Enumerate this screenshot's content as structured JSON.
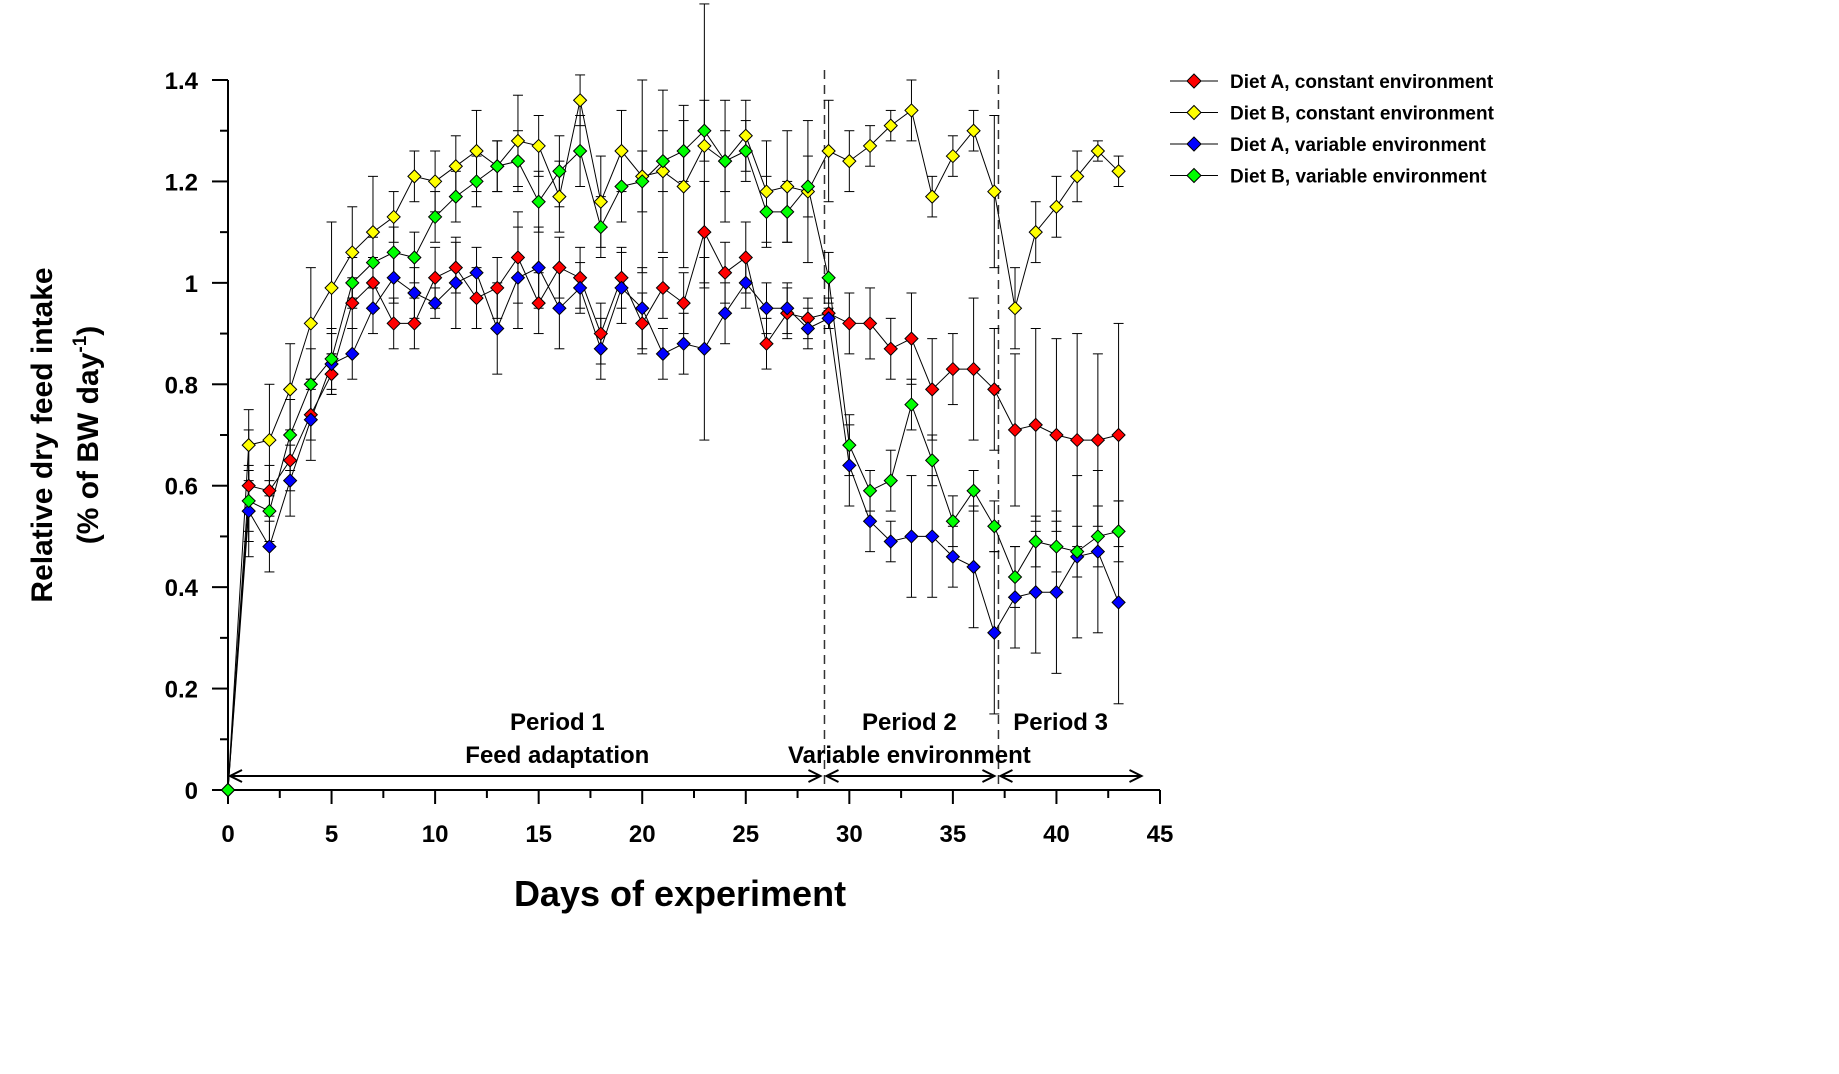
{
  "chart_data": {
    "type": "line",
    "xlabel": "Days of experiment",
    "ylabel_line1": "Relative dry feed intake",
    "ylabel_line2_prefix": "(% of BW day",
    "ylabel_line2_sup": "-1",
    "ylabel_line2_suffix": ")",
    "xlim": [
      0,
      45
    ],
    "ylim": [
      0,
      1.4
    ],
    "xticks": [
      0,
      5,
      10,
      15,
      20,
      25,
      30,
      35,
      40,
      45
    ],
    "yticks": [
      {
        "v": 0,
        "label": "0"
      },
      {
        "v": 0.2,
        "label": "0.2"
      },
      {
        "v": 0.4,
        "label": "0.4"
      },
      {
        "v": 0.6,
        "label": "0.6"
      },
      {
        "v": 0.8,
        "label": "0.8"
      },
      {
        "v": 1.0,
        "label": "1"
      },
      {
        "v": 1.2,
        "label": "1.2"
      },
      {
        "v": 1.4,
        "label": "1.4"
      }
    ],
    "grid": false,
    "legend_position": "top-right",
    "period_dividers": [
      28.8,
      37.2
    ],
    "periods": [
      {
        "line1": "Period 1",
        "line2": "Feed adaptation",
        "x_start": 0,
        "x_end": 28.8,
        "label_x": 15.9
      },
      {
        "line1": "Period 2",
        "line2": "Variable environment",
        "x_start": 28.8,
        "x_end": 37.2,
        "label_x": 32.9
      },
      {
        "line1": "Period 3",
        "line2": "",
        "x_start": 37.2,
        "x_end": 44.3,
        "label_x": 40.2
      }
    ],
    "series": [
      {
        "name": "Diet A, constant environment",
        "color": "#ff0000",
        "points": [
          [
            0,
            0,
            0
          ],
          [
            1,
            0.6,
            0.11
          ],
          [
            2,
            0.59,
            0.05
          ],
          [
            3,
            0.65,
            0.06
          ],
          [
            4,
            0.74,
            0.05
          ],
          [
            5,
            0.82,
            0.04
          ],
          [
            6,
            0.96,
            0.05
          ],
          [
            7,
            1.0,
            0.05
          ],
          [
            8,
            0.92,
            0.05
          ],
          [
            9,
            0.92,
            0.05
          ],
          [
            10,
            1.01,
            0.06
          ],
          [
            11,
            1.03,
            0.05
          ],
          [
            12,
            0.97,
            0.06
          ],
          [
            13,
            0.99,
            0.06
          ],
          [
            14,
            1.05,
            0.09
          ],
          [
            15,
            0.96,
            0.06
          ],
          [
            16,
            1.03,
            0.06
          ],
          [
            17,
            1.01,
            0.06
          ],
          [
            18,
            0.9,
            0.06
          ],
          [
            19,
            1.01,
            0.06
          ],
          [
            20,
            0.92,
            0.06
          ],
          [
            21,
            0.99,
            0.06
          ],
          [
            22,
            0.96,
            0.06
          ],
          [
            23,
            1.1,
            0.1
          ],
          [
            24,
            1.02,
            0.06
          ],
          [
            25,
            1.05,
            0.07
          ],
          [
            26,
            0.88,
            0.05
          ],
          [
            27,
            0.94,
            0.05
          ],
          [
            28,
            0.93,
            0.04
          ],
          [
            29,
            0.94,
            0.03
          ],
          [
            30,
            0.92,
            0.06
          ],
          [
            31,
            0.92,
            0.07
          ],
          [
            32,
            0.87,
            0.06
          ],
          [
            33,
            0.89,
            0.09
          ],
          [
            34,
            0.79,
            0.1
          ],
          [
            35,
            0.83,
            0.07
          ],
          [
            36,
            0.83,
            0.14
          ],
          [
            37,
            0.79,
            0.12
          ],
          [
            38,
            0.71,
            0.15
          ],
          [
            39,
            0.72,
            0.19
          ],
          [
            40,
            0.7,
            0.19
          ],
          [
            41,
            0.69,
            0.21
          ],
          [
            42,
            0.69,
            0.17
          ],
          [
            43,
            0.7,
            0.22
          ]
        ]
      },
      {
        "name": "Diet B, constant environment",
        "color": "#ffff00",
        "points": [
          [
            0,
            0,
            0
          ],
          [
            1,
            0.68,
            0.07
          ],
          [
            2,
            0.69,
            0.11
          ],
          [
            3,
            0.79,
            0.09
          ],
          [
            4,
            0.92,
            0.11
          ],
          [
            5,
            0.99,
            0.13
          ],
          [
            6,
            1.06,
            0.09
          ],
          [
            7,
            1.1,
            0.11
          ],
          [
            8,
            1.13,
            0.05
          ],
          [
            9,
            1.21,
            0.05
          ],
          [
            10,
            1.2,
            0.06
          ],
          [
            11,
            1.23,
            0.06
          ],
          [
            12,
            1.26,
            0.08
          ],
          [
            13,
            1.23,
            0.05
          ],
          [
            14,
            1.28,
            0.09
          ],
          [
            15,
            1.27,
            0.06
          ],
          [
            16,
            1.17,
            0.07
          ],
          [
            17,
            1.36,
            0.05
          ],
          [
            18,
            1.16,
            0.09
          ],
          [
            19,
            1.26,
            0.08
          ],
          [
            20,
            1.21,
            0.19
          ],
          [
            21,
            1.22,
            0.16
          ],
          [
            22,
            1.19,
            0.16
          ],
          [
            23,
            1.27,
            0.28
          ],
          [
            24,
            1.24,
            0.12
          ],
          [
            25,
            1.29,
            0.07
          ],
          [
            26,
            1.18,
            0.1
          ],
          [
            27,
            1.19,
            0.11
          ],
          [
            28,
            1.18,
            0.14
          ],
          [
            29,
            1.26,
            0.1
          ],
          [
            30,
            1.24,
            0.06
          ],
          [
            31,
            1.27,
            0.04
          ],
          [
            32,
            1.31,
            0.03
          ],
          [
            33,
            1.34,
            0.06
          ],
          [
            34,
            1.17,
            0.04
          ],
          [
            35,
            1.25,
            0.04
          ],
          [
            36,
            1.3,
            0.04
          ],
          [
            37,
            1.18,
            0.15
          ],
          [
            38,
            0.95,
            0.08
          ],
          [
            39,
            1.1,
            0.06
          ],
          [
            40,
            1.15,
            0.06
          ],
          [
            41,
            1.21,
            0.05
          ],
          [
            42,
            1.26,
            0.02
          ],
          [
            43,
            1.22,
            0.03
          ]
        ]
      },
      {
        "name": "Diet A, variable environment",
        "color": "#0000ff",
        "points": [
          [
            0,
            0,
            0
          ],
          [
            1,
            0.55,
            0.09
          ],
          [
            2,
            0.48,
            0.05
          ],
          [
            3,
            0.61,
            0.07
          ],
          [
            4,
            0.73,
            0.08
          ],
          [
            5,
            0.84,
            0.06
          ],
          [
            6,
            0.86,
            0.05
          ],
          [
            7,
            0.95,
            0.05
          ],
          [
            8,
            1.01,
            0.05
          ],
          [
            9,
            0.98,
            0.05
          ],
          [
            10,
            0.96,
            0.03
          ],
          [
            11,
            1.0,
            0.09
          ],
          [
            12,
            1.02,
            0.05
          ],
          [
            13,
            0.91,
            0.09
          ],
          [
            14,
            1.01,
            0.1
          ],
          [
            15,
            1.03,
            0.08
          ],
          [
            16,
            0.95,
            0.08
          ],
          [
            17,
            0.99,
            0.05
          ],
          [
            18,
            0.87,
            0.06
          ],
          [
            19,
            0.99,
            0.07
          ],
          [
            20,
            0.95,
            0.08
          ],
          [
            21,
            0.86,
            0.05
          ],
          [
            22,
            0.88,
            0.06
          ],
          [
            23,
            0.87,
            0.18
          ],
          [
            24,
            0.94,
            0.06
          ],
          [
            25,
            1.0,
            0.05
          ],
          [
            26,
            0.95,
            0.05
          ],
          [
            27,
            0.95,
            0.05
          ],
          [
            28,
            0.91,
            0.04
          ],
          [
            29,
            0.93,
            0.02
          ],
          [
            30,
            0.64,
            0.08
          ],
          [
            31,
            0.53,
            0.06
          ],
          [
            32,
            0.49,
            0.04
          ],
          [
            33,
            0.5,
            0.12
          ],
          [
            34,
            0.5,
            0.12
          ],
          [
            35,
            0.46,
            0.06
          ],
          [
            36,
            0.44,
            0.12
          ],
          [
            37,
            0.31,
            0.16
          ],
          [
            38,
            0.38,
            0.1
          ],
          [
            39,
            0.39,
            0.12
          ],
          [
            40,
            0.39,
            0.16
          ],
          [
            41,
            0.46,
            0.16
          ],
          [
            42,
            0.47,
            0.16
          ],
          [
            43,
            0.37,
            0.2
          ]
        ]
      },
      {
        "name": "Diet B, variable environment",
        "color": "#00ff00",
        "points": [
          [
            0,
            0,
            0
          ],
          [
            1,
            0.57,
            0.06
          ],
          [
            2,
            0.55,
            0.06
          ],
          [
            3,
            0.7,
            0.07
          ],
          [
            4,
            0.8,
            0.07
          ],
          [
            5,
            0.85,
            0.06
          ],
          [
            6,
            1.0,
            0.05
          ],
          [
            7,
            1.04,
            0.05
          ],
          [
            8,
            1.06,
            0.05
          ],
          [
            9,
            1.05,
            0.05
          ],
          [
            10,
            1.13,
            0.05
          ],
          [
            11,
            1.17,
            0.05
          ],
          [
            12,
            1.2,
            0.05
          ],
          [
            13,
            1.23,
            0.05
          ],
          [
            14,
            1.24,
            0.06
          ],
          [
            15,
            1.16,
            0.06
          ],
          [
            16,
            1.22,
            0.07
          ],
          [
            17,
            1.26,
            0.07
          ],
          [
            18,
            1.11,
            0.06
          ],
          [
            19,
            1.19,
            0.07
          ],
          [
            20,
            1.2,
            0.06
          ],
          [
            21,
            1.24,
            0.06
          ],
          [
            22,
            1.26,
            0.06
          ],
          [
            23,
            1.3,
            0.06
          ],
          [
            24,
            1.24,
            0.06
          ],
          [
            25,
            1.26,
            0.06
          ],
          [
            26,
            1.14,
            0.07
          ],
          [
            27,
            1.14,
            0.06
          ],
          [
            28,
            1.19,
            0.06
          ],
          [
            29,
            1.01,
            0.05
          ],
          [
            30,
            0.68,
            0.06
          ],
          [
            31,
            0.59,
            0.04
          ],
          [
            32,
            0.61,
            0.06
          ],
          [
            33,
            0.76,
            0.05
          ],
          [
            34,
            0.65,
            0.05
          ],
          [
            35,
            0.53,
            0.05
          ],
          [
            36,
            0.59,
            0.04
          ],
          [
            37,
            0.52,
            0.05
          ],
          [
            38,
            0.42,
            0.06
          ],
          [
            39,
            0.49,
            0.05
          ],
          [
            40,
            0.48,
            0.05
          ],
          [
            41,
            0.47,
            0.05
          ],
          [
            42,
            0.5,
            0.06
          ],
          [
            43,
            0.51,
            0.06
          ]
        ]
      }
    ]
  }
}
